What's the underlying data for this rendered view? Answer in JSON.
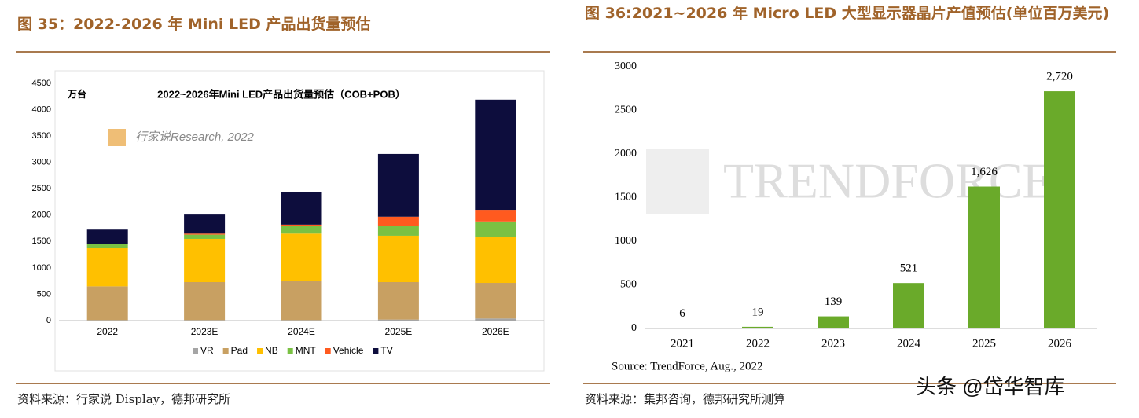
{
  "chart_data": [
    {
      "type": "stacked_bar",
      "caption": "图 35：2022-2026 年 Mini LED 产品出货量预估",
      "title": "2022~2026年Mini LED产品出货量预估（COB+POB）",
      "y_label": "万台",
      "annotations": [
        "行家说Research, 2022"
      ],
      "source": "资料来源：行家说 Display，德邦研究所",
      "categories": [
        "2022",
        "2023E",
        "2024E",
        "2025E",
        "2026E"
      ],
      "series": [
        {
          "name": "VR",
          "color": "#a5a5a5",
          "values": [
            10,
            10,
            10,
            20,
            40
          ]
        },
        {
          "name": "Pad",
          "color": "#c8a062",
          "values": [
            640,
            720,
            750,
            710,
            675
          ]
        },
        {
          "name": "NB",
          "color": "#ffc000",
          "values": [
            730,
            820,
            890,
            880,
            865
          ]
        },
        {
          "name": "MNT",
          "color": "#7ac143",
          "values": [
            70,
            80,
            140,
            190,
            300
          ]
        },
        {
          "name": "Vehicle",
          "color": "#ff5a1f",
          "values": [
            5,
            20,
            30,
            170,
            220
          ]
        },
        {
          "name": "TV",
          "color": "#0d0d3d",
          "values": [
            270,
            360,
            610,
            1190,
            2090
          ]
        }
      ],
      "ylim": [
        0,
        4500
      ],
      "yticks": [
        0,
        500,
        1000,
        1500,
        2000,
        2500,
        3000,
        3500,
        4000,
        4500
      ],
      "grid": false,
      "legend": "bottom"
    },
    {
      "type": "bar",
      "caption": "图 36:2021~2026 年 Micro LED 大型显示器晶片产值预估(单位百万美元)",
      "annotations": [
        "TRENDFORCE",
        "Source: TrendForce, Aug., 2022"
      ],
      "source": "资料来源：集邦咨询，德邦研究所测算",
      "categories": [
        "2021",
        "2022",
        "2023",
        "2024",
        "2025",
        "2026"
      ],
      "values": [
        6,
        19,
        139,
        521,
        1626,
        2720
      ],
      "value_labels": [
        "6",
        "19",
        "139",
        "521",
        "1,626",
        "2,720"
      ],
      "color": "#6aaa2a",
      "ylim": [
        0,
        3000
      ],
      "yticks": [
        0,
        500,
        1000,
        1500,
        2000,
        2500,
        3000
      ],
      "grid": false
    }
  ],
  "watermark": "头条 @岱华智库"
}
